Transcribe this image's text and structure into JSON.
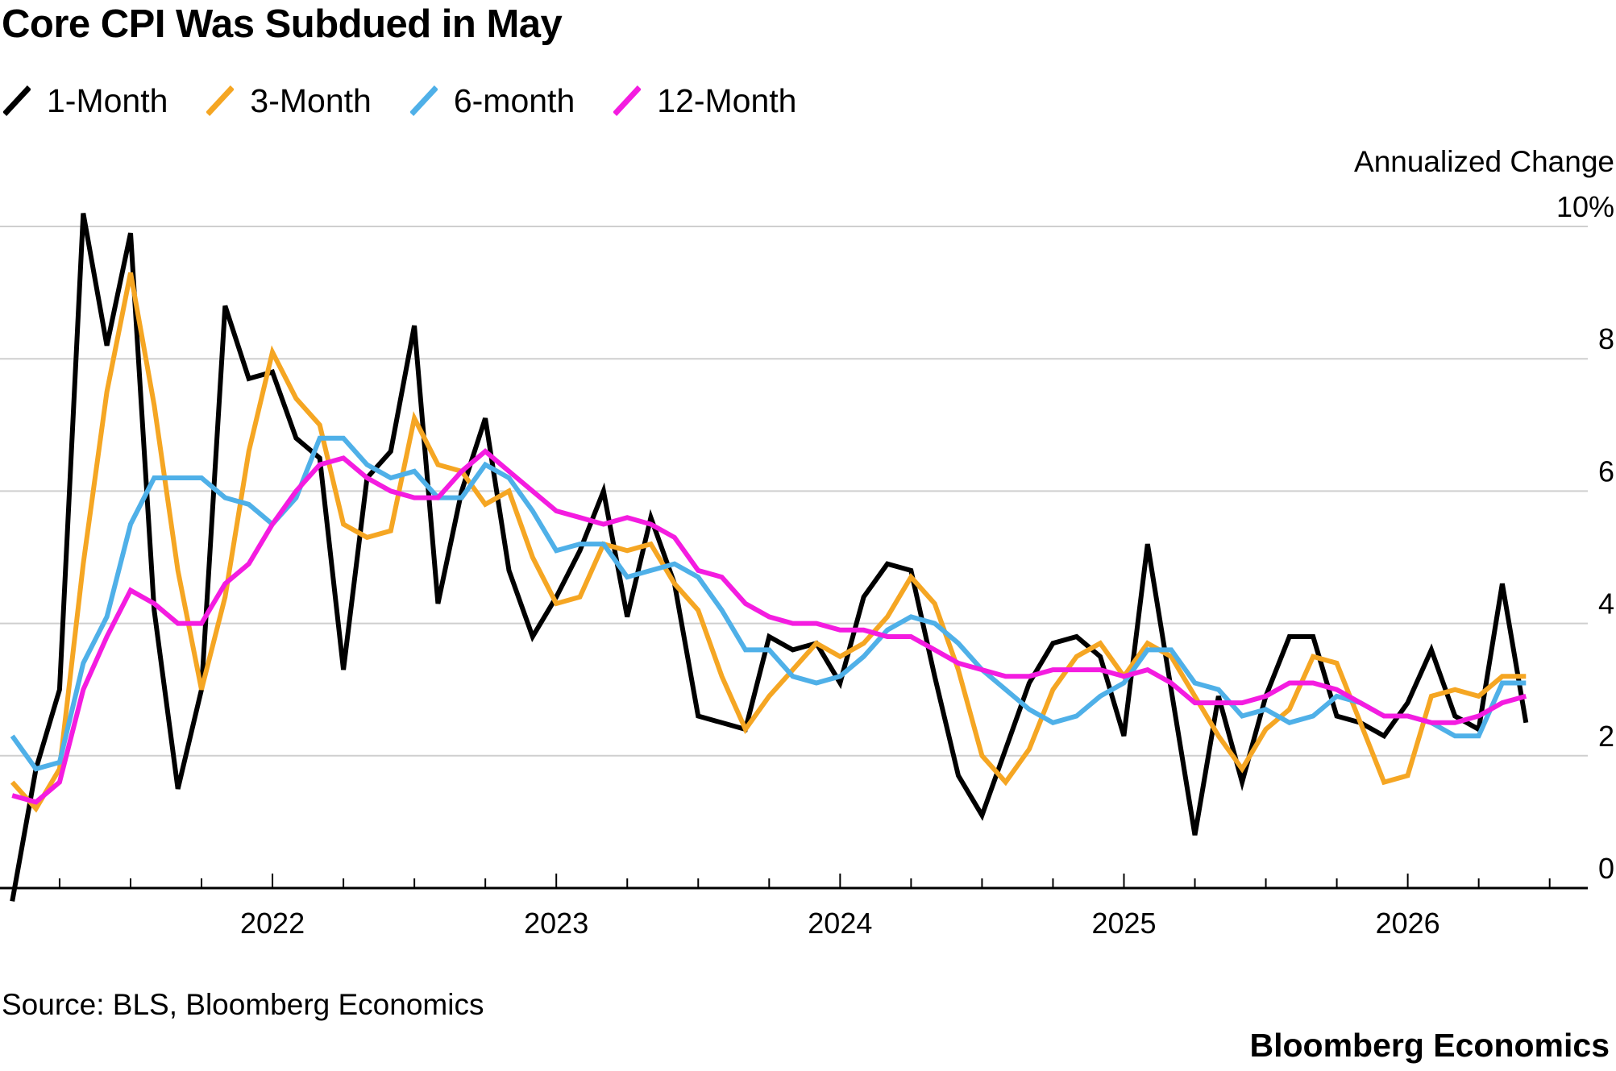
{
  "title": "Core CPI Was Subdued in May",
  "source": "Source: BLS, Bloomberg Economics",
  "brand": "Bloomberg Economics",
  "chart_data": {
    "type": "line",
    "title": "Core CPI Was Subdued in May",
    "ylabel": "Annualized Change",
    "ylim": [
      0,
      10
    ],
    "yticks": [
      0,
      2,
      4,
      6,
      8,
      10
    ],
    "ytick_labels": [
      "0",
      "2",
      "4",
      "6",
      "8",
      "10%"
    ],
    "xlim": [
      2021.04,
      2026.64
    ],
    "xticks_major": [
      2022,
      2023,
      2024,
      2025,
      2026
    ],
    "xtick_labels": [
      "2022",
      "2023",
      "2024",
      "2025",
      "2026"
    ],
    "grid": true,
    "legend_position": "top-left",
    "x_start": 2021.0833,
    "x_step": 0.08333,
    "series": [
      {
        "name": "1-Month",
        "color": "#000000",
        "values": [
          -0.2,
          1.8,
          3.0,
          10.2,
          8.2,
          9.9,
          4.2,
          1.5,
          3.0,
          8.8,
          7.7,
          7.8,
          6.8,
          6.5,
          3.3,
          6.2,
          6.6,
          8.5,
          4.3,
          6.0,
          7.1,
          4.8,
          3.8,
          4.4,
          5.1,
          6.0,
          4.1,
          5.6,
          4.6,
          2.6,
          2.5,
          2.4,
          3.8,
          3.6,
          3.7,
          3.1,
          4.4,
          4.9,
          4.8,
          3.2,
          1.7,
          1.1,
          2.1,
          3.1,
          3.7,
          3.8,
          3.5,
          2.3,
          5.2,
          3.0,
          0.8,
          2.9,
          1.6,
          2.9,
          3.8,
          3.8,
          2.6,
          2.5,
          2.3,
          2.8,
          3.6,
          2.6,
          2.4,
          4.6,
          2.5
        ]
      },
      {
        "name": "3-Month",
        "color": "#F5A623",
        "values": [
          1.6,
          1.2,
          1.8,
          4.9,
          7.5,
          9.3,
          7.3,
          4.8,
          3.0,
          4.4,
          6.6,
          8.1,
          7.4,
          7.0,
          5.5,
          5.3,
          5.4,
          7.1,
          6.4,
          6.3,
          5.8,
          6.0,
          5.0,
          4.3,
          4.4,
          5.2,
          5.1,
          5.2,
          4.6,
          4.2,
          3.2,
          2.4,
          2.9,
          3.3,
          3.7,
          3.5,
          3.7,
          4.1,
          4.7,
          4.3,
          3.3,
          2.0,
          1.6,
          2.1,
          3.0,
          3.5,
          3.7,
          3.2,
          3.7,
          3.5,
          2.9,
          2.3,
          1.8,
          2.4,
          2.7,
          3.5,
          3.4,
          2.5,
          1.6,
          1.7,
          2.9,
          3.0,
          2.9,
          3.2,
          3.2
        ]
      },
      {
        "name": "6-month",
        "color": "#4FB0E8",
        "values": [
          2.3,
          1.8,
          1.9,
          3.4,
          4.1,
          5.5,
          6.2,
          6.2,
          6.2,
          5.9,
          5.8,
          5.5,
          5.9,
          6.8,
          6.8,
          6.4,
          6.2,
          6.3,
          5.9,
          5.9,
          6.4,
          6.2,
          5.7,
          5.1,
          5.2,
          5.2,
          4.7,
          4.8,
          4.9,
          4.7,
          4.2,
          3.6,
          3.6,
          3.2,
          3.1,
          3.2,
          3.5,
          3.9,
          4.1,
          4.0,
          3.7,
          3.3,
          3.0,
          2.7,
          2.5,
          2.6,
          2.9,
          3.1,
          3.6,
          3.6,
          3.1,
          3.0,
          2.6,
          2.7,
          2.5,
          2.6,
          2.9,
          2.8,
          2.6,
          2.6,
          2.5,
          2.3,
          2.3,
          3.1,
          3.1
        ]
      },
      {
        "name": "12-Month",
        "color": "#F41CE0",
        "values": [
          1.4,
          1.3,
          1.6,
          3.0,
          3.8,
          4.5,
          4.3,
          4.0,
          4.0,
          4.6,
          4.9,
          5.5,
          6.0,
          6.4,
          6.5,
          6.2,
          6.0,
          5.9,
          5.9,
          6.3,
          6.6,
          6.3,
          6.0,
          5.7,
          5.6,
          5.5,
          5.6,
          5.5,
          5.3,
          4.8,
          4.7,
          4.3,
          4.1,
          4.0,
          4.0,
          3.9,
          3.9,
          3.8,
          3.8,
          3.6,
          3.4,
          3.3,
          3.2,
          3.2,
          3.3,
          3.3,
          3.3,
          3.2,
          3.3,
          3.1,
          2.8,
          2.8,
          2.8,
          2.9,
          3.1,
          3.1,
          3.0,
          2.8,
          2.6,
          2.6,
          2.5,
          2.5,
          2.6,
          2.8,
          2.9
        ]
      }
    ]
  }
}
